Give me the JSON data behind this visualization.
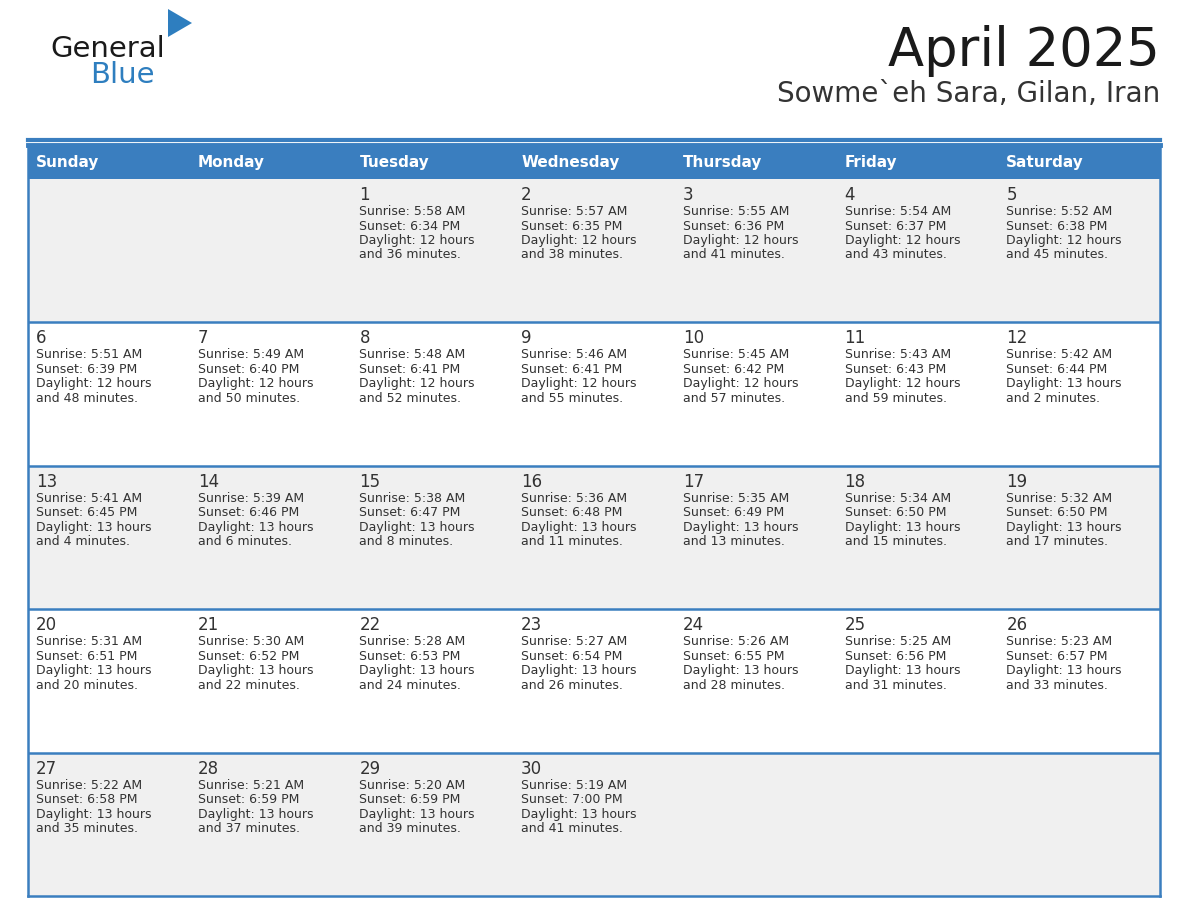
{
  "title": "April 2025",
  "subtitle": "Sowme`eh Sara, Gilan, Iran",
  "header_bg": "#3A7EBF",
  "header_text_color": "#FFFFFF",
  "cell_bg_odd": "#F0F0F0",
  "cell_bg_even": "#FFFFFF",
  "border_color": "#3A7EBF",
  "sep_color": "#3A7EBF",
  "text_color": "#333333",
  "days_of_week": [
    "Sunday",
    "Monday",
    "Tuesday",
    "Wednesday",
    "Thursday",
    "Friday",
    "Saturday"
  ],
  "calendar": [
    [
      {
        "day": "",
        "sunrise": "",
        "sunset": "",
        "daylight": ""
      },
      {
        "day": "",
        "sunrise": "",
        "sunset": "",
        "daylight": ""
      },
      {
        "day": "1",
        "sunrise": "5:58 AM",
        "sunset": "6:34 PM",
        "daylight": "12 hours\nand 36 minutes."
      },
      {
        "day": "2",
        "sunrise": "5:57 AM",
        "sunset": "6:35 PM",
        "daylight": "12 hours\nand 38 minutes."
      },
      {
        "day": "3",
        "sunrise": "5:55 AM",
        "sunset": "6:36 PM",
        "daylight": "12 hours\nand 41 minutes."
      },
      {
        "day": "4",
        "sunrise": "5:54 AM",
        "sunset": "6:37 PM",
        "daylight": "12 hours\nand 43 minutes."
      },
      {
        "day": "5",
        "sunrise": "5:52 AM",
        "sunset": "6:38 PM",
        "daylight": "12 hours\nand 45 minutes."
      }
    ],
    [
      {
        "day": "6",
        "sunrise": "5:51 AM",
        "sunset": "6:39 PM",
        "daylight": "12 hours\nand 48 minutes."
      },
      {
        "day": "7",
        "sunrise": "5:49 AM",
        "sunset": "6:40 PM",
        "daylight": "12 hours\nand 50 minutes."
      },
      {
        "day": "8",
        "sunrise": "5:48 AM",
        "sunset": "6:41 PM",
        "daylight": "12 hours\nand 52 minutes."
      },
      {
        "day": "9",
        "sunrise": "5:46 AM",
        "sunset": "6:41 PM",
        "daylight": "12 hours\nand 55 minutes."
      },
      {
        "day": "10",
        "sunrise": "5:45 AM",
        "sunset": "6:42 PM",
        "daylight": "12 hours\nand 57 minutes."
      },
      {
        "day": "11",
        "sunrise": "5:43 AM",
        "sunset": "6:43 PM",
        "daylight": "12 hours\nand 59 minutes."
      },
      {
        "day": "12",
        "sunrise": "5:42 AM",
        "sunset": "6:44 PM",
        "daylight": "13 hours\nand 2 minutes."
      }
    ],
    [
      {
        "day": "13",
        "sunrise": "5:41 AM",
        "sunset": "6:45 PM",
        "daylight": "13 hours\nand 4 minutes."
      },
      {
        "day": "14",
        "sunrise": "5:39 AM",
        "sunset": "6:46 PM",
        "daylight": "13 hours\nand 6 minutes."
      },
      {
        "day": "15",
        "sunrise": "5:38 AM",
        "sunset": "6:47 PM",
        "daylight": "13 hours\nand 8 minutes."
      },
      {
        "day": "16",
        "sunrise": "5:36 AM",
        "sunset": "6:48 PM",
        "daylight": "13 hours\nand 11 minutes."
      },
      {
        "day": "17",
        "sunrise": "5:35 AM",
        "sunset": "6:49 PM",
        "daylight": "13 hours\nand 13 minutes."
      },
      {
        "day": "18",
        "sunrise": "5:34 AM",
        "sunset": "6:50 PM",
        "daylight": "13 hours\nand 15 minutes."
      },
      {
        "day": "19",
        "sunrise": "5:32 AM",
        "sunset": "6:50 PM",
        "daylight": "13 hours\nand 17 minutes."
      }
    ],
    [
      {
        "day": "20",
        "sunrise": "5:31 AM",
        "sunset": "6:51 PM",
        "daylight": "13 hours\nand 20 minutes."
      },
      {
        "day": "21",
        "sunrise": "5:30 AM",
        "sunset": "6:52 PM",
        "daylight": "13 hours\nand 22 minutes."
      },
      {
        "day": "22",
        "sunrise": "5:28 AM",
        "sunset": "6:53 PM",
        "daylight": "13 hours\nand 24 minutes."
      },
      {
        "day": "23",
        "sunrise": "5:27 AM",
        "sunset": "6:54 PM",
        "daylight": "13 hours\nand 26 minutes."
      },
      {
        "day": "24",
        "sunrise": "5:26 AM",
        "sunset": "6:55 PM",
        "daylight": "13 hours\nand 28 minutes."
      },
      {
        "day": "25",
        "sunrise": "5:25 AM",
        "sunset": "6:56 PM",
        "daylight": "13 hours\nand 31 minutes."
      },
      {
        "day": "26",
        "sunrise": "5:23 AM",
        "sunset": "6:57 PM",
        "daylight": "13 hours\nand 33 minutes."
      }
    ],
    [
      {
        "day": "27",
        "sunrise": "5:22 AM",
        "sunset": "6:58 PM",
        "daylight": "13 hours\nand 35 minutes."
      },
      {
        "day": "28",
        "sunrise": "5:21 AM",
        "sunset": "6:59 PM",
        "daylight": "13 hours\nand 37 minutes."
      },
      {
        "day": "29",
        "sunrise": "5:20 AM",
        "sunset": "6:59 PM",
        "daylight": "13 hours\nand 39 minutes."
      },
      {
        "day": "30",
        "sunrise": "5:19 AM",
        "sunset": "7:00 PM",
        "daylight": "13 hours\nand 41 minutes."
      },
      {
        "day": "",
        "sunrise": "",
        "sunset": "",
        "daylight": ""
      },
      {
        "day": "",
        "sunrise": "",
        "sunset": "",
        "daylight": ""
      },
      {
        "day": "",
        "sunrise": "",
        "sunset": "",
        "daylight": ""
      }
    ]
  ],
  "logo_general_color": "#1A1A1A",
  "logo_blue_color": "#2E7EBF",
  "logo_triangle_color": "#2E7EBF"
}
